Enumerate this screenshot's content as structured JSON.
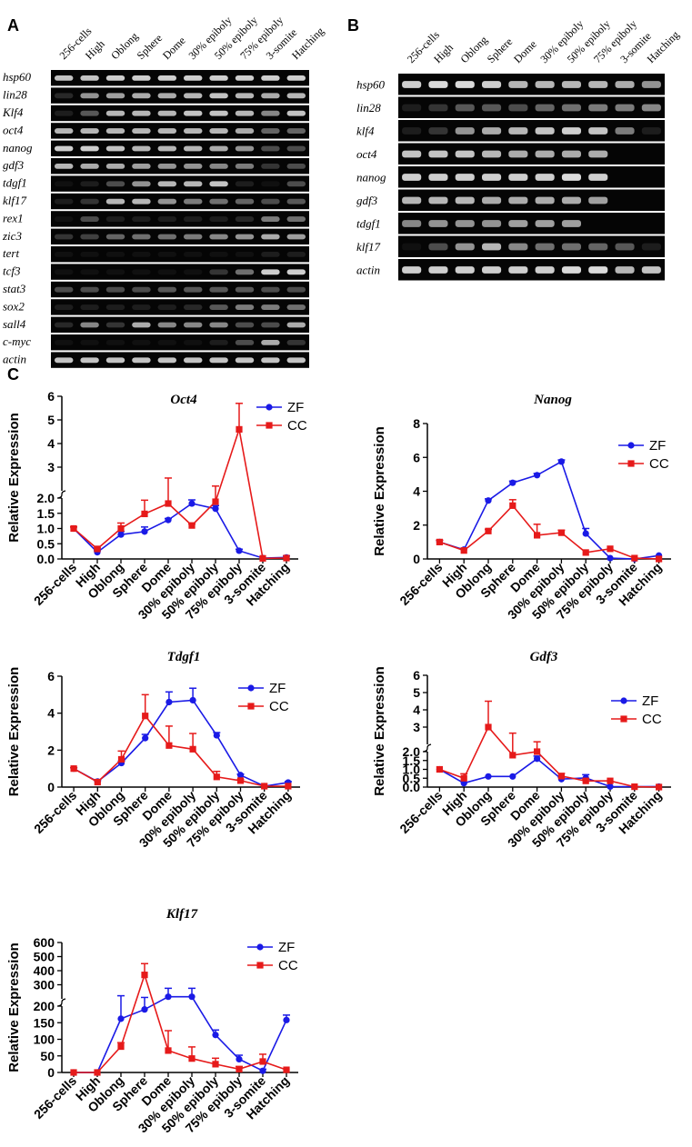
{
  "colors": {
    "zf": "#1a1ae6",
    "cc": "#e61a1a",
    "gel_bg": "#050505",
    "band": "#f2f2f2"
  },
  "stages": [
    "256-cells",
    "High",
    "Oblong",
    "Sphere",
    "Dome",
    "30% epiboly",
    "50% epiboly",
    "75% epiboly",
    "3-somite",
    "Hatching"
  ],
  "panel_labels": {
    "A": "A",
    "B": "B",
    "C": "C"
  },
  "gel_a": {
    "genes": [
      "hsp60",
      "lin28",
      "Klf4",
      "oct4",
      "nanog",
      "gdf3",
      "tdgf1",
      "klf17",
      "rex1",
      "zic3",
      "tert",
      "tcf3",
      "stat3",
      "sox2",
      "sall4",
      "c-myc",
      "actin"
    ],
    "intensity": [
      [
        0.8,
        0.8,
        0.85,
        0.85,
        0.85,
        0.85,
        0.85,
        0.85,
        0.85,
        0.85
      ],
      [
        0.15,
        0.6,
        0.65,
        0.7,
        0.7,
        0.75,
        0.8,
        0.75,
        0.7,
        0.75
      ],
      [
        0.1,
        0.35,
        0.75,
        0.75,
        0.75,
        0.8,
        0.8,
        0.75,
        0.55,
        0.8
      ],
      [
        0.75,
        0.75,
        0.75,
        0.75,
        0.75,
        0.75,
        0.75,
        0.7,
        0.4,
        0.4
      ],
      [
        0.85,
        0.85,
        0.8,
        0.75,
        0.75,
        0.75,
        0.7,
        0.6,
        0.3,
        0.3
      ],
      [
        0.75,
        0.7,
        0.7,
        0.65,
        0.6,
        0.6,
        0.55,
        0.5,
        0.2,
        0.3
      ],
      [
        0.05,
        0.1,
        0.3,
        0.6,
        0.75,
        0.75,
        0.8,
        0.1,
        0.05,
        0.3
      ],
      [
        0.1,
        0.2,
        0.75,
        0.75,
        0.6,
        0.5,
        0.45,
        0.4,
        0.3,
        0.35
      ],
      [
        0.05,
        0.3,
        0.1,
        0.1,
        0.1,
        0.1,
        0.1,
        0.15,
        0.5,
        0.45
      ],
      [
        0.2,
        0.25,
        0.4,
        0.45,
        0.45,
        0.5,
        0.55,
        0.6,
        0.7,
        0.65
      ],
      [
        0.05,
        0.05,
        0.05,
        0.05,
        0.05,
        0.05,
        0.05,
        0.05,
        0.1,
        0.1
      ],
      [
        0.05,
        0.05,
        0.05,
        0.05,
        0.05,
        0.05,
        0.2,
        0.45,
        0.85,
        0.85
      ],
      [
        0.3,
        0.3,
        0.3,
        0.3,
        0.35,
        0.35,
        0.35,
        0.35,
        0.3,
        0.3
      ],
      [
        0.1,
        0.1,
        0.1,
        0.1,
        0.1,
        0.15,
        0.35,
        0.5,
        0.5,
        0.45
      ],
      [
        0.15,
        0.55,
        0.2,
        0.7,
        0.55,
        0.55,
        0.55,
        0.3,
        0.3,
        0.7
      ],
      [
        0.05,
        0.05,
        0.05,
        0.05,
        0.05,
        0.05,
        0.1,
        0.3,
        0.7,
        0.2
      ],
      [
        0.8,
        0.8,
        0.8,
        0.8,
        0.8,
        0.8,
        0.8,
        0.8,
        0.8,
        0.8
      ]
    ]
  },
  "gel_b": {
    "genes": [
      "hsp60",
      "lin28",
      "klf4",
      "oct4",
      "nanog",
      "gdf3",
      "tdgf1",
      "klf17",
      "actin"
    ],
    "intensity": [
      [
        0.85,
        0.9,
        0.9,
        0.85,
        0.75,
        0.75,
        0.75,
        0.75,
        0.7,
        0.6
      ],
      [
        0.1,
        0.2,
        0.35,
        0.35,
        0.3,
        0.4,
        0.45,
        0.5,
        0.5,
        0.55
      ],
      [
        0.1,
        0.2,
        0.6,
        0.7,
        0.75,
        0.8,
        0.85,
        0.8,
        0.5,
        0.1
      ],
      [
        0.8,
        0.8,
        0.8,
        0.75,
        0.7,
        0.7,
        0.7,
        0.7,
        0.0,
        0.0
      ],
      [
        0.85,
        0.85,
        0.85,
        0.85,
        0.85,
        0.85,
        0.9,
        0.85,
        0.0,
        0.0
      ],
      [
        0.75,
        0.75,
        0.75,
        0.7,
        0.7,
        0.7,
        0.7,
        0.65,
        0.0,
        0.0
      ],
      [
        0.55,
        0.6,
        0.6,
        0.6,
        0.65,
        0.65,
        0.65,
        0.0,
        0.0,
        0.0
      ],
      [
        0.05,
        0.3,
        0.6,
        0.75,
        0.55,
        0.45,
        0.45,
        0.4,
        0.35,
        0.1
      ],
      [
        0.85,
        0.85,
        0.85,
        0.85,
        0.85,
        0.85,
        0.9,
        0.9,
        0.75,
        0.8
      ]
    ]
  },
  "chart_data": [
    {
      "type": "line",
      "title": "Oct4",
      "ylabel": "Relative Expression",
      "categories": [
        "256-cells",
        "High",
        "Oblong",
        "Sphere",
        "Dome",
        "30% epiboly",
        "50% epiboly",
        "75% epiboly",
        "3-somite",
        "Hatching"
      ],
      "ylim_lower": [
        0,
        2.0
      ],
      "yticks_lower": [
        "0.0",
        "0.5",
        "1.0",
        "1.5",
        "2.0"
      ],
      "ylim_upper": [
        2,
        6
      ],
      "yticks_upper": [
        "2",
        "3",
        "4",
        "5",
        "6"
      ],
      "series": [
        {
          "name": "ZF",
          "values": [
            1.0,
            0.22,
            0.8,
            0.9,
            1.28,
            1.82,
            1.65,
            0.27,
            0.03,
            0.05
          ],
          "errors": [
            0.05,
            0.05,
            0.1,
            0.15,
            0.05,
            0.12,
            0.1,
            0.05,
            0.01,
            0.05
          ]
        },
        {
          "name": "CC",
          "values": [
            1.0,
            0.33,
            1.0,
            1.48,
            1.82,
            1.1,
            1.88,
            4.6,
            0.02,
            0.03
          ],
          "errors": [
            0.05,
            0.03,
            0.18,
            0.45,
            0.72,
            0.05,
            0.32,
            1.1,
            0.01,
            0.01
          ]
        }
      ]
    },
    {
      "type": "line",
      "title": "Nanog",
      "ylabel": "Relative Expression",
      "categories": [
        "256-cells",
        "High",
        "Oblong",
        "Sphere",
        "Dome",
        "30% epiboly",
        "50% epiboly",
        "75% epiboly",
        "3-somite",
        "Hatching"
      ],
      "ylim": [
        0,
        8
      ],
      "yticks": [
        "0",
        "2",
        "4",
        "6",
        "8"
      ],
      "series": [
        {
          "name": "ZF",
          "values": [
            1.0,
            0.55,
            3.45,
            4.5,
            4.95,
            5.75,
            1.5,
            0.05,
            0.0,
            0.2
          ],
          "errors": [
            0.1,
            0.05,
            0.1,
            0.1,
            0.1,
            0.1,
            0.3,
            0.02,
            0.01,
            0.05
          ]
        },
        {
          "name": "CC",
          "values": [
            1.0,
            0.5,
            1.65,
            3.15,
            1.4,
            1.55,
            0.38,
            0.6,
            0.05,
            0.0
          ],
          "errors": [
            0.1,
            0.05,
            0.1,
            0.35,
            0.65,
            0.15,
            0.05,
            0.05,
            0.01,
            0.01
          ]
        }
      ]
    },
    {
      "type": "line",
      "title": "Tdgf1",
      "ylabel": "Relative Expression",
      "categories": [
        "256-cells",
        "High",
        "Oblong",
        "Sphere",
        "Dome",
        "30% epiboly",
        "50% epiboly",
        "75% epiboly",
        "3-somite",
        "Hatching"
      ],
      "ylim": [
        0,
        6
      ],
      "yticks": [
        "0",
        "2",
        "4",
        "6"
      ],
      "series": [
        {
          "name": "ZF",
          "values": [
            1.0,
            0.3,
            1.3,
            2.65,
            4.6,
            4.7,
            2.8,
            0.65,
            0.05,
            0.25
          ],
          "errors": [
            0.05,
            0.05,
            0.1,
            0.2,
            0.55,
            0.65,
            0.15,
            0.05,
            0.02,
            0.05
          ]
        },
        {
          "name": "CC",
          "values": [
            1.0,
            0.27,
            1.5,
            3.85,
            2.25,
            2.05,
            0.55,
            0.35,
            0.05,
            0.05
          ],
          "errors": [
            0.05,
            0.03,
            0.45,
            1.15,
            1.05,
            0.85,
            0.3,
            0.05,
            0.02,
            0.02
          ]
        }
      ]
    },
    {
      "type": "line",
      "title": "Gdf3",
      "ylabel": "Relative Expression",
      "categories": [
        "256-cells",
        "High",
        "Oblong",
        "Sphere",
        "Dome",
        "30% epiboly",
        "50% epiboly",
        "75% epiboly",
        "3-somite",
        "Hatching"
      ],
      "ylim_lower": [
        0,
        2.0
      ],
      "yticks_lower": [
        "0.0",
        "0.5",
        "1.0",
        "1.5",
        "2.0"
      ],
      "ylim_upper": [
        2,
        6
      ],
      "yticks_upper": [
        "2",
        "3",
        "4",
        "5",
        "6"
      ],
      "series": [
        {
          "name": "ZF",
          "values": [
            1.0,
            0.22,
            0.6,
            0.6,
            1.6,
            0.45,
            0.52,
            0.03,
            0.02,
            0.03
          ],
          "errors": [
            0.05,
            0.03,
            0.05,
            0.05,
            0.15,
            0.1,
            0.18,
            0.01,
            0.01,
            0.01
          ]
        },
        {
          "name": "CC",
          "values": [
            1.0,
            0.5,
            3.0,
            1.8,
            2.0,
            0.62,
            0.35,
            0.35,
            0.02,
            0.0
          ],
          "errors": [
            0.05,
            0.25,
            1.5,
            0.85,
            0.15,
            0.15,
            0.1,
            0.05,
            0.01,
            0.01
          ]
        }
      ]
    },
    {
      "type": "line",
      "title": "Klf17",
      "ylabel": "Relative Expression",
      "categories": [
        "256-cells",
        "High",
        "Oblong",
        "Sphere",
        "Dome",
        "30% epiboly",
        "50% epiboly",
        "75% epiboly",
        "3-somite",
        "Hatching"
      ],
      "ylim_lower": [
        0,
        200
      ],
      "yticks_lower": [
        "0",
        "50",
        "100",
        "150",
        "200"
      ],
      "ylim_upper": [
        200,
        600
      ],
      "yticks_upper": [
        "200",
        "300",
        "400",
        "500",
        "600"
      ],
      "series": [
        {
          "name": "ZF",
          "values": [
            0,
            0,
            162,
            190,
            215,
            215,
            113,
            40,
            5,
            158
          ],
          "errors": [
            1,
            1,
            60,
            20,
            60,
            60,
            15,
            12,
            5,
            15
          ]
        },
        {
          "name": "CC",
          "values": [
            0,
            0,
            78,
            370,
            66,
            42,
            25,
            10,
            33,
            8
          ],
          "errors": [
            1,
            1,
            12,
            80,
            60,
            35,
            18,
            8,
            22,
            2
          ]
        }
      ]
    }
  ]
}
